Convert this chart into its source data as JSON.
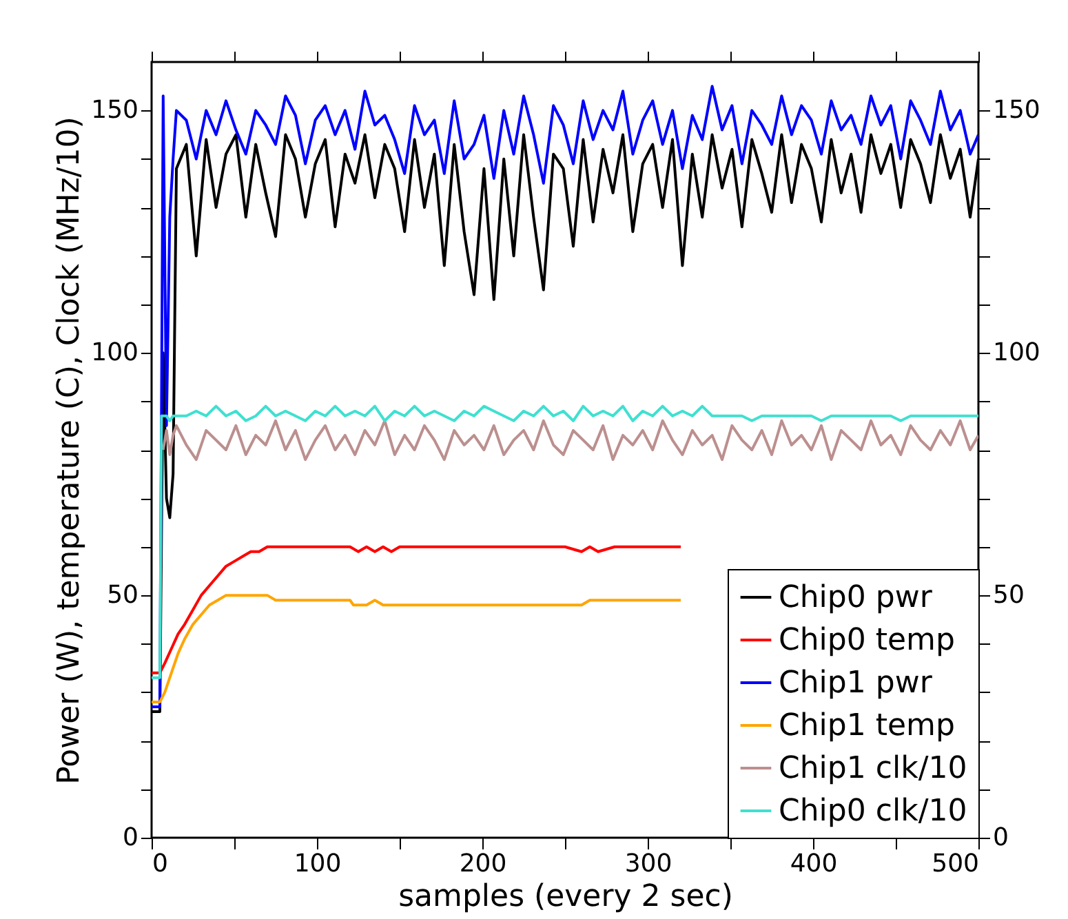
{
  "chart_data": {
    "type": "line",
    "xlabel": "samples (every 2 sec)",
    "ylabel": "Power (W), temperature (C), Clock (MHz/10)",
    "xlim": [
      0,
      500
    ],
    "xticks": [
      0,
      {
        "value": 50,
        "label": null
      },
      100,
      {
        "value": 150,
        "label": null
      },
      200,
      {
        "value": 250,
        "label": null
      },
      300,
      {
        "value": 350,
        "label": null
      },
      400,
      {
        "value": 450,
        "label": null
      },
      500
    ],
    "ylim": [
      0,
      160
    ],
    "yticks": [
      0,
      {
        "value": 10,
        "label": null
      },
      {
        "value": 20,
        "label": null
      },
      {
        "value": 30,
        "label": null
      },
      {
        "value": 40,
        "label": null
      },
      50,
      {
        "value": 60,
        "label": null
      },
      {
        "value": 70,
        "label": null
      },
      {
        "value": 80,
        "label": null
      },
      {
        "value": 90,
        "label": null
      },
      100,
      {
        "value": 110,
        "label": null
      },
      {
        "value": 120,
        "label": null
      },
      {
        "value": 130,
        "label": null
      },
      {
        "value": 140,
        "label": null
      },
      150
    ],
    "y2lim": [
      0,
      160
    ],
    "y2ticks": [
      0,
      {
        "value": 10,
        "label": null
      },
      {
        "value": 20,
        "label": null
      },
      {
        "value": 30,
        "label": null
      },
      {
        "value": 40,
        "label": null
      },
      50,
      {
        "value": 60,
        "label": null
      },
      {
        "value": 70,
        "label": null
      },
      {
        "value": 80,
        "label": null
      },
      {
        "value": 90,
        "label": null
      },
      100,
      {
        "value": 110,
        "label": null
      },
      {
        "value": 120,
        "label": null
      },
      {
        "value": 130,
        "label": null
      },
      {
        "value": 140,
        "label": null
      },
      150
    ],
    "grid": false,
    "legend": "bottom right",
    "line_style": "solid",
    "marker": "none",
    "series": [
      {
        "name": "Chip0 pwr",
        "color": "#000000",
        "x": [
          0,
          5,
          7,
          9,
          11,
          13,
          15,
          21,
          27,
          33,
          39,
          45,
          51,
          57,
          63,
          69,
          75,
          81,
          87,
          93,
          99,
          105,
          111,
          117,
          123,
          129,
          135,
          141,
          147,
          153,
          159,
          165,
          171,
          177,
          183,
          189,
          195,
          201,
          207,
          213,
          219,
          225,
          231,
          237,
          243,
          249,
          255,
          261,
          267,
          273,
          279,
          285,
          291,
          297,
          303,
          309,
          315,
          321,
          327,
          333,
          339,
          345,
          351,
          357,
          363,
          369,
          375,
          381,
          387,
          393,
          399,
          405,
          411,
          417,
          423,
          429,
          435,
          441,
          447,
          453,
          459,
          465,
          471,
          477,
          483,
          489,
          495,
          500
        ],
        "values": [
          26,
          26,
          100,
          70,
          66,
          75,
          138,
          143,
          120,
          144,
          130,
          141,
          145,
          128,
          143,
          133,
          124,
          145,
          140,
          128,
          139,
          144,
          126,
          141,
          135,
          145,
          132,
          143,
          138,
          125,
          144,
          130,
          141,
          118,
          143,
          125,
          112,
          138,
          111,
          140,
          120,
          145,
          128,
          113,
          141,
          138,
          122,
          144,
          127,
          142,
          133,
          145,
          125,
          139,
          143,
          130,
          144,
          118,
          141,
          128,
          145,
          134,
          142,
          126,
          144,
          137,
          129,
          145,
          131,
          143,
          138,
          127,
          144,
          133,
          141,
          129,
          145,
          137,
          143,
          130,
          144,
          139,
          131,
          145,
          136,
          142,
          128,
          140
        ]
      },
      {
        "name": "Chip0 temp",
        "color": "#ff0000",
        "x": [
          0,
          5,
          8,
          12,
          16,
          20,
          25,
          30,
          35,
          40,
          45,
          50,
          55,
          60,
          65,
          70,
          100,
          120,
          125,
          130,
          135,
          140,
          145,
          150,
          160,
          200,
          250,
          260,
          265,
          270,
          280,
          290,
          300,
          320
        ],
        "values": [
          34,
          34,
          36,
          39,
          42,
          44,
          47,
          50,
          52,
          54,
          56,
          57,
          58,
          59,
          59,
          60,
          60,
          60,
          59,
          60,
          59,
          60,
          59,
          60,
          60,
          60,
          60,
          59,
          60,
          59,
          60,
          60,
          60,
          60
        ]
      },
      {
        "name": "Chip1 pwr",
        "color": "#0000ff",
        "x": [
          0,
          5,
          7,
          9,
          11,
          13,
          15,
          21,
          27,
          33,
          39,
          45,
          51,
          57,
          63,
          69,
          75,
          81,
          87,
          93,
          99,
          105,
          111,
          117,
          123,
          129,
          135,
          141,
          147,
          153,
          159,
          165,
          171,
          177,
          183,
          189,
          195,
          201,
          207,
          213,
          219,
          225,
          231,
          237,
          243,
          249,
          255,
          261,
          267,
          273,
          279,
          285,
          291,
          297,
          303,
          309,
          315,
          321,
          327,
          333,
          339,
          345,
          351,
          357,
          363,
          369,
          375,
          381,
          387,
          393,
          399,
          405,
          411,
          417,
          423,
          429,
          435,
          441,
          447,
          453,
          459,
          465,
          471,
          477,
          483,
          489,
          495,
          500
        ],
        "values": [
          27,
          27,
          153,
          85,
          128,
          140,
          150,
          148,
          140,
          150,
          145,
          152,
          146,
          141,
          150,
          147,
          143,
          153,
          149,
          139,
          148,
          151,
          145,
          150,
          142,
          154,
          147,
          149,
          144,
          137,
          151,
          145,
          148,
          137,
          152,
          140,
          143,
          149,
          136,
          150,
          141,
          153,
          145,
          135,
          151,
          147,
          139,
          152,
          144,
          150,
          146,
          154,
          141,
          148,
          152,
          143,
          150,
          138,
          149,
          144,
          155,
          146,
          151,
          139,
          150,
          147,
          143,
          153,
          145,
          151,
          148,
          141,
          152,
          146,
          149,
          143,
          153,
          147,
          151,
          140,
          152,
          148,
          143,
          154,
          146,
          150,
          141,
          145
        ]
      },
      {
        "name": "Chip1 temp",
        "color": "#ffa500",
        "x": [
          0,
          5,
          8,
          12,
          16,
          20,
          25,
          30,
          35,
          40,
          45,
          50,
          60,
          70,
          75,
          100,
          120,
          122,
          130,
          135,
          140,
          150,
          200,
          250,
          260,
          265,
          270,
          300,
          320
        ],
        "values": [
          28,
          28,
          30,
          34,
          38,
          41,
          44,
          46,
          48,
          49,
          50,
          50,
          50,
          50,
          49,
          49,
          49,
          48,
          48,
          49,
          48,
          48,
          48,
          48,
          48,
          49,
          49,
          49,
          49
        ]
      },
      {
        "name": "Chip1 clk/10",
        "color": "#bc8f8f",
        "x": [
          7,
          9,
          11,
          13,
          15,
          21,
          27,
          33,
          39,
          45,
          51,
          57,
          63,
          69,
          75,
          81,
          87,
          93,
          99,
          105,
          111,
          117,
          123,
          129,
          135,
          141,
          147,
          153,
          159,
          165,
          171,
          177,
          183,
          189,
          195,
          201,
          207,
          213,
          219,
          225,
          231,
          237,
          243,
          249,
          255,
          261,
          267,
          273,
          279,
          285,
          291,
          297,
          303,
          309,
          315,
          321,
          327,
          333,
          339,
          345,
          351,
          357,
          363,
          369,
          375,
          381,
          387,
          393,
          399,
          405,
          411,
          417,
          423,
          429,
          435,
          441,
          447,
          453,
          459,
          465,
          471,
          477,
          483,
          489,
          495,
          500
        ],
        "values": [
          80,
          84,
          79,
          83,
          85,
          81,
          78,
          84,
          82,
          80,
          85,
          79,
          83,
          81,
          86,
          80,
          84,
          78,
          82,
          85,
          80,
          83,
          79,
          84,
          81,
          86,
          79,
          83,
          80,
          85,
          82,
          78,
          84,
          81,
          83,
          80,
          85,
          79,
          82,
          84,
          80,
          86,
          81,
          79,
          84,
          82,
          80,
          85,
          78,
          83,
          81,
          84,
          80,
          86,
          82,
          79,
          84,
          81,
          83,
          78,
          85,
          82,
          80,
          84,
          79,
          86,
          81,
          83,
          80,
          85,
          78,
          84,
          82,
          80,
          86,
          81,
          83,
          79,
          85,
          82,
          80,
          84,
          81,
          86,
          80,
          83
        ]
      },
      {
        "name": "Chip0 clk/10",
        "color": "#40e0d0",
        "x": [
          0,
          5,
          6,
          9,
          11,
          13,
          15,
          21,
          27,
          33,
          39,
          45,
          51,
          57,
          63,
          69,
          75,
          81,
          87,
          93,
          99,
          105,
          111,
          117,
          123,
          129,
          135,
          141,
          147,
          153,
          159,
          165,
          171,
          177,
          183,
          189,
          195,
          201,
          207,
          213,
          219,
          225,
          231,
          237,
          243,
          249,
          255,
          261,
          267,
          273,
          279,
          285,
          291,
          297,
          303,
          309,
          315,
          321,
          327,
          333,
          339,
          345,
          351,
          357,
          363,
          369,
          375,
          381,
          387,
          393,
          399,
          405,
          411,
          417,
          423,
          429,
          435,
          441,
          447,
          453,
          459,
          465,
          471,
          477,
          483,
          489,
          495,
          500
        ],
        "values": [
          33,
          33,
          87,
          87,
          86,
          87,
          87,
          87,
          88,
          87,
          89,
          87,
          88,
          86,
          87,
          89,
          87,
          88,
          87,
          86,
          88,
          87,
          89,
          87,
          88,
          87,
          89,
          86,
          88,
          87,
          89,
          87,
          88,
          87,
          86,
          88,
          87,
          89,
          88,
          87,
          86,
          88,
          87,
          89,
          87,
          88,
          86,
          89,
          87,
          88,
          87,
          89,
          86,
          88,
          87,
          89,
          87,
          88,
          87,
          89,
          87,
          87,
          87,
          87,
          86,
          87,
          87,
          87,
          87,
          87,
          87,
          86,
          87,
          87,
          87,
          87,
          87,
          87,
          87,
          86,
          87,
          87,
          87,
          87,
          87,
          87,
          87,
          87
        ]
      }
    ]
  }
}
